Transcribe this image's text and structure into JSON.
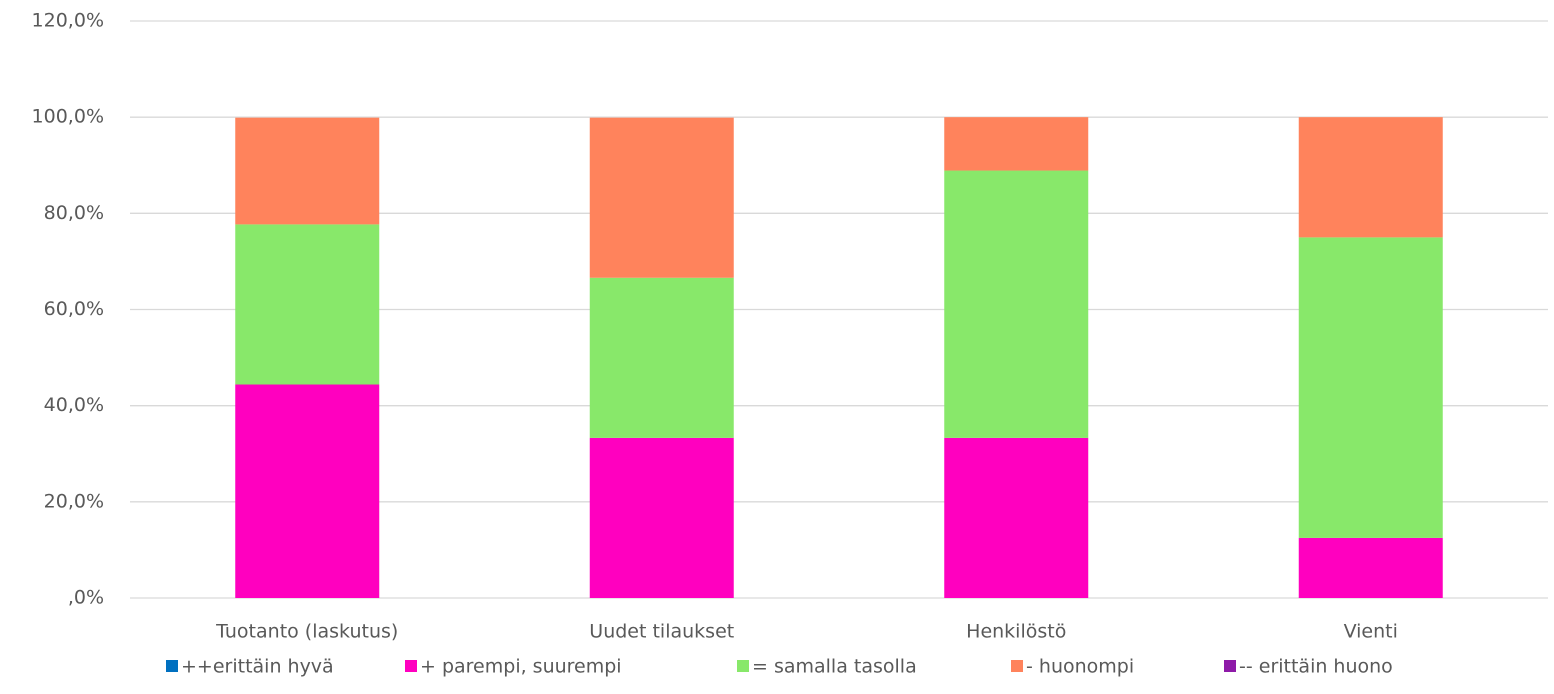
{
  "chart_data": {
    "type": "stacked_bar",
    "categories": [
      "Tuotanto (laskutus)",
      "Uudet tilaukset",
      "Henkilöstö",
      "Vienti"
    ],
    "series": [
      {
        "name": "++erittäin hyvä",
        "color": "#0070c0",
        "values": [
          0,
          0,
          0,
          0
        ]
      },
      {
        "name": "+ parempi, suurempi",
        "color": "#ff00bf",
        "values": [
          44.4,
          33.3,
          33.3,
          12.5
        ]
      },
      {
        "name": "= samalla tasolla",
        "color": "#88e86a",
        "values": [
          33.3,
          33.3,
          55.6,
          62.5
        ]
      },
      {
        "name": "- huonompi",
        "color": "#ff835c",
        "values": [
          22.2,
          33.3,
          11.1,
          25
        ]
      },
      {
        "name": "-- erittäin huono",
        "color": "#8e1aa8",
        "values": [
          0,
          0,
          0,
          0
        ]
      }
    ],
    "ylim": [
      0,
      120
    ],
    "yticks": [
      {
        "value": 0,
        "label": ",0%"
      },
      {
        "value": 20,
        "label": "20,0%"
      },
      {
        "value": 40,
        "label": "40,0%"
      },
      {
        "value": 60,
        "label": "60,0%"
      },
      {
        "value": 80,
        "label": "80,0%"
      },
      {
        "value": 100,
        "label": "100,0%"
      },
      {
        "value": 120,
        "label": "120,0%"
      }
    ],
    "grid": true,
    "legend": "bottom"
  }
}
